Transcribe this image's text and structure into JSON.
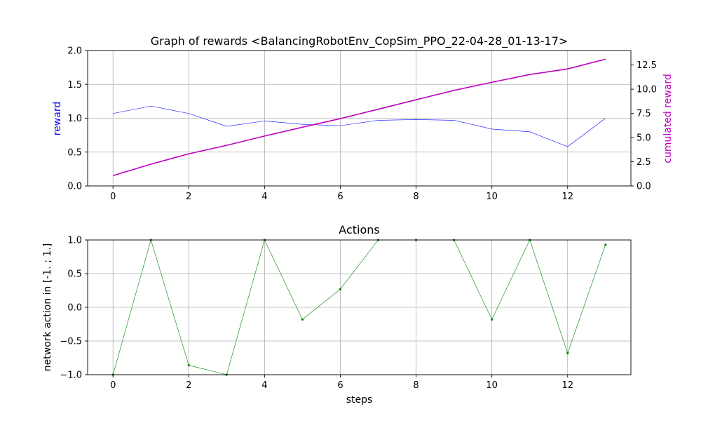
{
  "chart_data": [
    {
      "type": "line",
      "title": "Graph of rewards <BalancingRobotEnv_CopSim_PPO_22-04-28_01-13-17>",
      "xlabel": "",
      "ylabel": "reward",
      "ylabel_right": "cumulated reward",
      "x": [
        0,
        1,
        2,
        3,
        4,
        5,
        6,
        7,
        8,
        9,
        10,
        11,
        12,
        13
      ],
      "xlim": [
        -0.67,
        13.67
      ],
      "xticks": [
        "0",
        "2",
        "4",
        "6",
        "8",
        "10",
        "12"
      ],
      "ylim": [
        0,
        2.0
      ],
      "yticks": [
        "0.0",
        "0.5",
        "1.0",
        "1.5",
        "2.0"
      ],
      "ylim_right": [
        0,
        14.0
      ],
      "yticks_right": [
        "0.0",
        "2.5",
        "5.0",
        "7.5",
        "10.0",
        "12.5"
      ],
      "grid": true,
      "series": [
        {
          "axis": "left",
          "color": "#0000ff",
          "values": [
            1.07,
            1.18,
            1.07,
            0.88,
            0.96,
            0.91,
            0.89,
            0.97,
            0.98,
            0.97,
            0.84,
            0.8,
            0.58,
            1.0
          ]
        },
        {
          "axis": "right",
          "color": "#bf00bf",
          "values": [
            1.07,
            2.25,
            3.32,
            4.2,
            5.16,
            6.07,
            6.96,
            7.93,
            8.91,
            9.88,
            10.72,
            11.52,
            12.1,
            13.1
          ]
        }
      ]
    },
    {
      "type": "line",
      "title": "Actions",
      "xlabel": "steps",
      "ylabel": "network action in [-1. ; 1.]",
      "x": [
        0,
        1,
        2,
        3,
        4,
        5,
        6,
        7,
        8,
        9,
        10,
        11,
        12,
        13
      ],
      "xlim": [
        -0.67,
        13.67
      ],
      "xticks": [
        "0",
        "2",
        "4",
        "6",
        "8",
        "10",
        "12"
      ],
      "ylim": [
        -1.0,
        1.0
      ],
      "yticks": [
        "−1.0",
        "−0.5",
        "0.0",
        "0.5",
        "1.0"
      ],
      "grid": true,
      "series": [
        {
          "color": "#008000",
          "marker": "point",
          "values": [
            -1.0,
            1.0,
            -0.86,
            -1.0,
            1.0,
            -0.18,
            0.27,
            1.0,
            1.0,
            1.0,
            -0.18,
            1.0,
            -0.68,
            0.93
          ]
        }
      ]
    }
  ]
}
